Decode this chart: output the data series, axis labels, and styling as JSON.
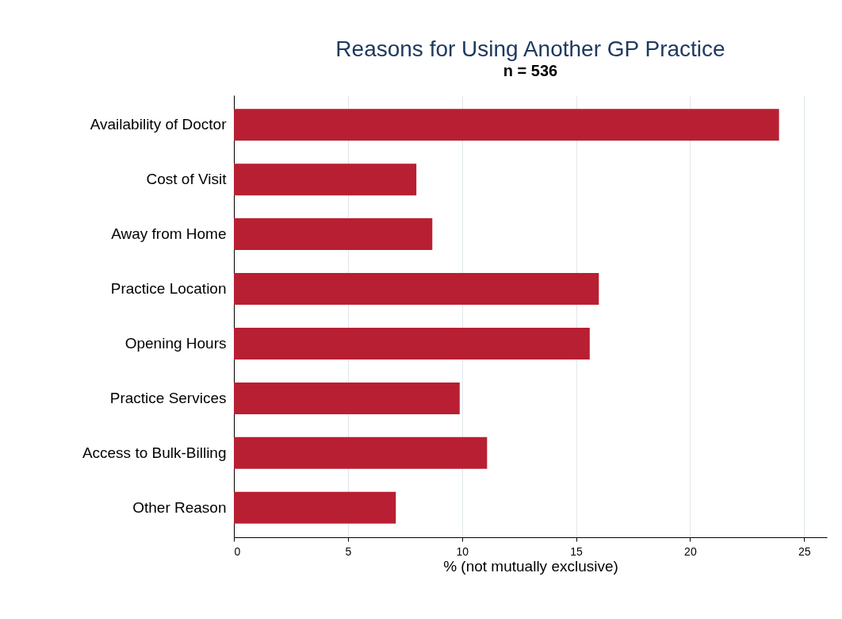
{
  "chart_data": {
    "type": "bar",
    "orientation": "horizontal",
    "title": "Reasons for Using Another GP Practice",
    "subtitle": "n = 536",
    "xlabel": "% (not mutually exclusive)",
    "categories": [
      "Availability of Doctor",
      "Cost of Visit",
      "Away from Home",
      "Practice Location",
      "Opening Hours",
      "Practice Services",
      "Access to Bulk-Billing",
      "Other Reason"
    ],
    "values": [
      23.9,
      8.0,
      8.7,
      16.0,
      15.6,
      9.9,
      11.1,
      7.1
    ],
    "color": "#b81f33",
    "xlim": [
      0,
      26
    ],
    "xticks": [
      0,
      5,
      10,
      15,
      20,
      25
    ],
    "grid": "x"
  }
}
